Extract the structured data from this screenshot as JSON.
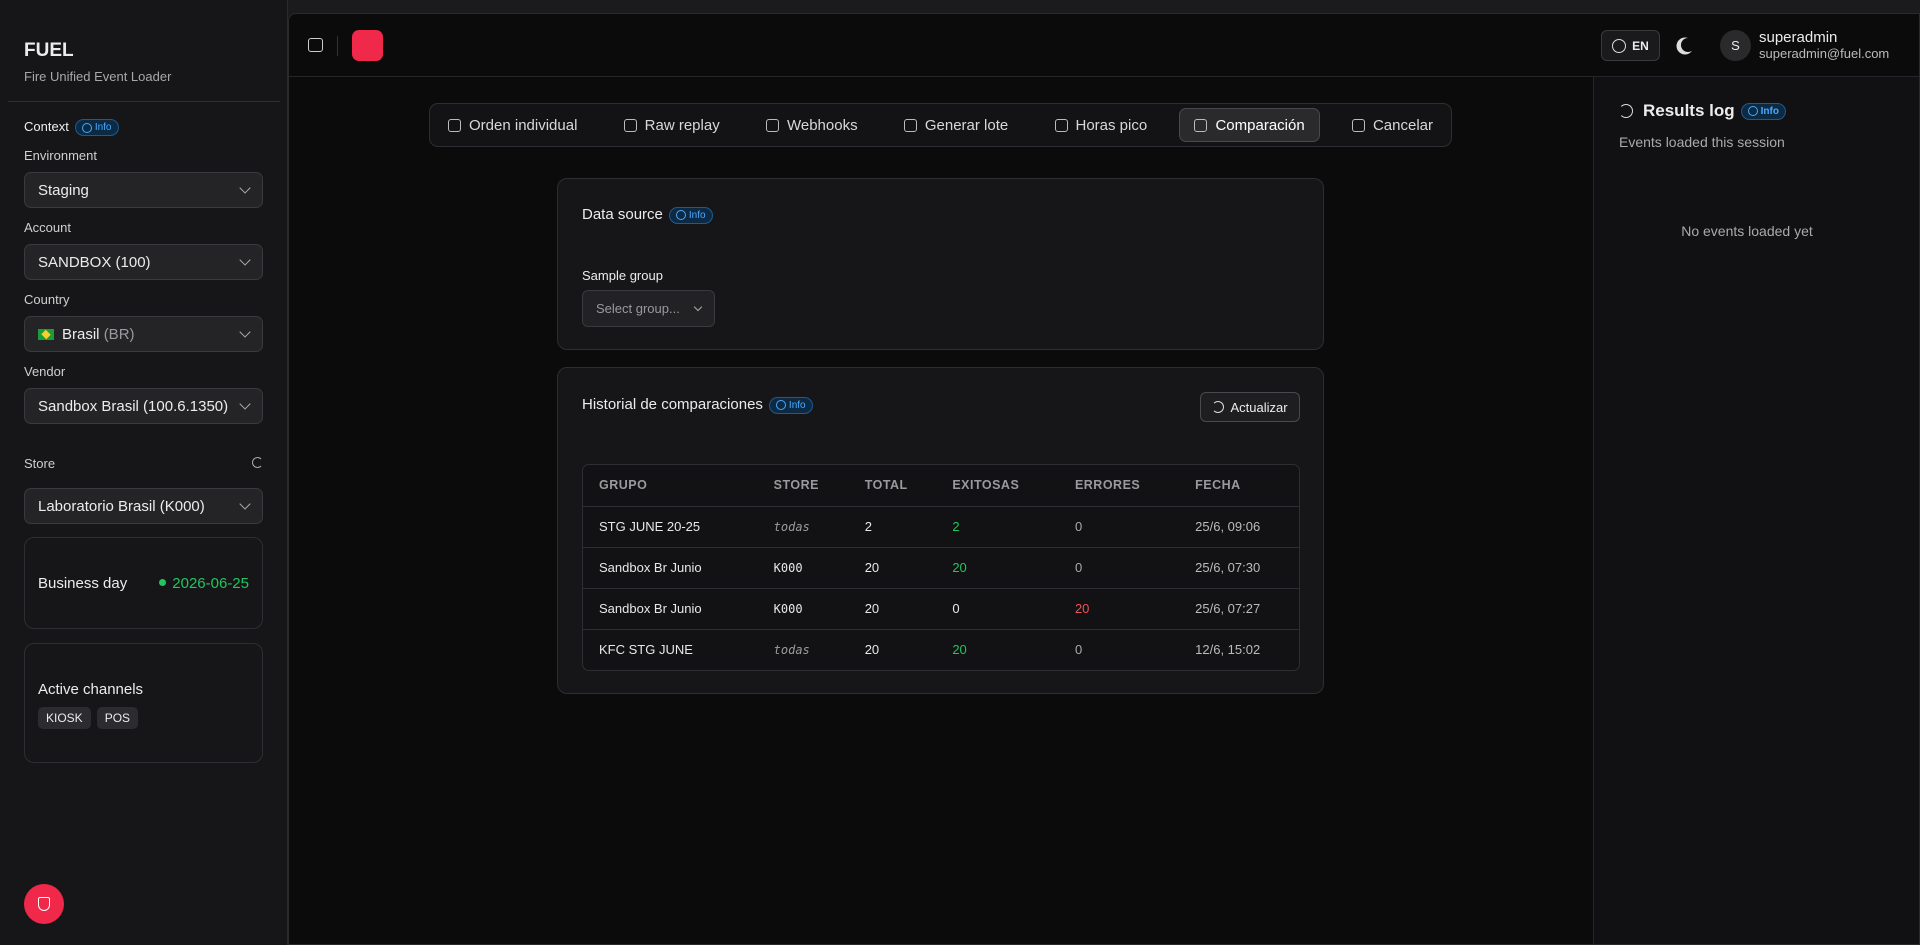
{
  "sidebar": {
    "app_name": "FUEL",
    "app_subtitle": "Fire Unified Event Loader",
    "context_label": "Context",
    "context_info": "Info",
    "environment": {
      "label": "Environment",
      "value": "Staging"
    },
    "account": {
      "label": "Account",
      "value": "SANDBOX (100)"
    },
    "country": {
      "label": "Country",
      "value": "Brasil",
      "code": "(BR)"
    },
    "vendor": {
      "label": "Vendor",
      "value": "Sandbox Brasil (100.6.1350)"
    },
    "store": {
      "label": "Store",
      "value": "Laboratorio Brasil (K000)"
    },
    "business_day": {
      "label": "Business day",
      "value": "2026-06-25"
    },
    "active_channels": {
      "label": "Active channels",
      "channels": [
        "KIOSK",
        "POS"
      ]
    }
  },
  "header": {
    "language": "EN",
    "avatar": "S",
    "user_name": "superadmin",
    "user_email": "superadmin@fuel.com"
  },
  "tabs": [
    {
      "label": "Orden individual"
    },
    {
      "label": "Raw replay"
    },
    {
      "label": "Webhooks"
    },
    {
      "label": "Generar lote"
    },
    {
      "label": "Horas pico"
    },
    {
      "label": "Comparación",
      "active": true
    },
    {
      "label": "Cancelar"
    }
  ],
  "data_source": {
    "title": "Data source",
    "info": "Info",
    "sample_group_label": "Sample group",
    "sample_group_placeholder": "Select group..."
  },
  "history": {
    "title": "Historial de comparaciones",
    "info": "Info",
    "refresh": "Actualizar",
    "table": {
      "headers": [
        "GRUPO",
        "STORE",
        "TOTAL",
        "EXITOSAS",
        "ERRORES",
        "FECHA"
      ],
      "rows": [
        [
          "STG JUNE 20-25",
          "todas",
          2,
          2,
          0,
          "25/6, 09:06"
        ],
        [
          "Sandbox Br Junio",
          "K000",
          20,
          20,
          0,
          "25/6, 07:30"
        ],
        [
          "Sandbox Br Junio",
          "K000",
          20,
          0,
          20,
          "25/6, 07:27"
        ],
        [
          "KFC STG JUNE",
          "todas",
          20,
          20,
          0,
          "12/6, 15:02"
        ]
      ]
    }
  },
  "results_log": {
    "title": "Results log",
    "info": "Info",
    "subtitle": "Events loaded this session",
    "empty": "No events loaded yet"
  }
}
